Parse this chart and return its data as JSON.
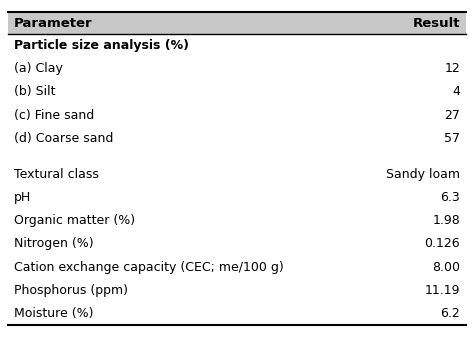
{
  "header": [
    "Parameter",
    "Result"
  ],
  "rows": [
    {
      "param": "Particle size analysis (%)",
      "result": "",
      "bold": true
    },
    {
      "param": "(a) Clay",
      "result": "12",
      "bold": false
    },
    {
      "param": "(b) Silt",
      "result": "4",
      "bold": false
    },
    {
      "param": "(c) Fine sand",
      "result": "27",
      "bold": false
    },
    {
      "param": "(d) Coarse sand",
      "result": "57",
      "bold": false
    },
    {
      "param": "",
      "result": "",
      "bold": false
    },
    {
      "param": "Textural class",
      "result": "Sandy loam",
      "bold": false
    },
    {
      "param": "pH",
      "result": "6.3",
      "bold": false
    },
    {
      "param": "Organic matter (%)",
      "result": "1.98",
      "bold": false
    },
    {
      "param": "Nitrogen (%)",
      "result": "0.126",
      "bold": false
    },
    {
      "param": "Cation exchange capacity (CEC; me/100 g)",
      "result": "8.00",
      "bold": false
    },
    {
      "param": "Phosphorus (ppm)",
      "result": "11.19",
      "bold": false
    },
    {
      "param": "Moisture (%)",
      "result": "6.2",
      "bold": false
    }
  ],
  "header_font_size": 9.5,
  "row_font_size": 9.0,
  "background_color": "#ffffff",
  "header_bg_color": "#c8c8c8",
  "border_color": "#000000",
  "text_color": "#000000",
  "fig_width": 4.74,
  "fig_height": 3.37,
  "dpi": 100
}
